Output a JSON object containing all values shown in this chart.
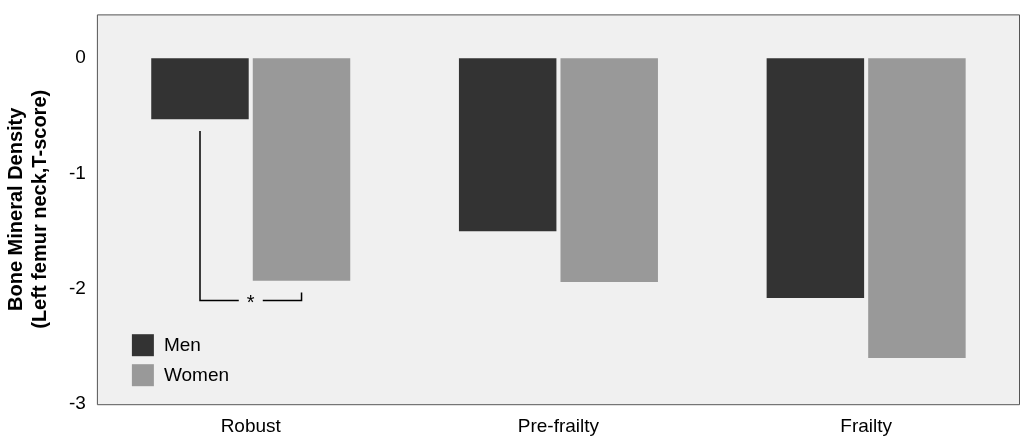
{
  "chart_data": {
    "type": "bar",
    "ylabel": "Bone Mineral Density\n(Left femur neck,T-score)",
    "categories": [
      "Robust",
      "Pre-frailty",
      "Frailty"
    ],
    "series": [
      {
        "name": "Men",
        "color": "#333333",
        "values": [
          -0.53,
          -1.5,
          -2.08
        ]
      },
      {
        "name": "Women",
        "color": "#999999",
        "values": [
          -1.93,
          -1.94,
          -2.6
        ]
      }
    ],
    "ylim": [
      -3,
      0.38
    ],
    "yticks": [
      -3,
      -2,
      -1,
      0
    ],
    "grid": false,
    "legend": "bottom left",
    "annotations": [
      "*"
    ]
  }
}
